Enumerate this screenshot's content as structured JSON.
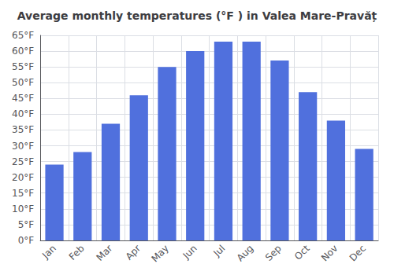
{
  "chart_data": {
    "type": "bar",
    "title": "Average monthly temperatures (°F ) in Valea Mare-Pravăț",
    "categories": [
      "Jan",
      "Feb",
      "Mar",
      "Apr",
      "May",
      "Jun",
      "Jul",
      "Aug",
      "Sep",
      "Oct",
      "Nov",
      "Dec"
    ],
    "values": [
      24,
      28,
      37,
      46,
      55,
      60,
      63,
      63,
      57,
      47,
      38,
      29
    ],
    "ylim": [
      0,
      65
    ],
    "yticks": [
      {
        "value": 0,
        "label": "0°F"
      },
      {
        "value": 5,
        "label": "5°F"
      },
      {
        "value": 10,
        "label": "10°F"
      },
      {
        "value": 15,
        "label": "15°F"
      },
      {
        "value": 20,
        "label": "20°F"
      },
      {
        "value": 25,
        "label": "25°F"
      },
      {
        "value": 30,
        "label": "30°F"
      },
      {
        "value": 35,
        "label": "35°F"
      },
      {
        "value": 40,
        "label": "40°F"
      },
      {
        "value": 45,
        "label": "45°F"
      },
      {
        "value": 50,
        "label": "50°F"
      },
      {
        "value": 55,
        "label": "55°F"
      },
      {
        "value": 60,
        "label": "60°F"
      },
      {
        "value": 65,
        "label": "65°F"
      }
    ],
    "grid": true
  }
}
